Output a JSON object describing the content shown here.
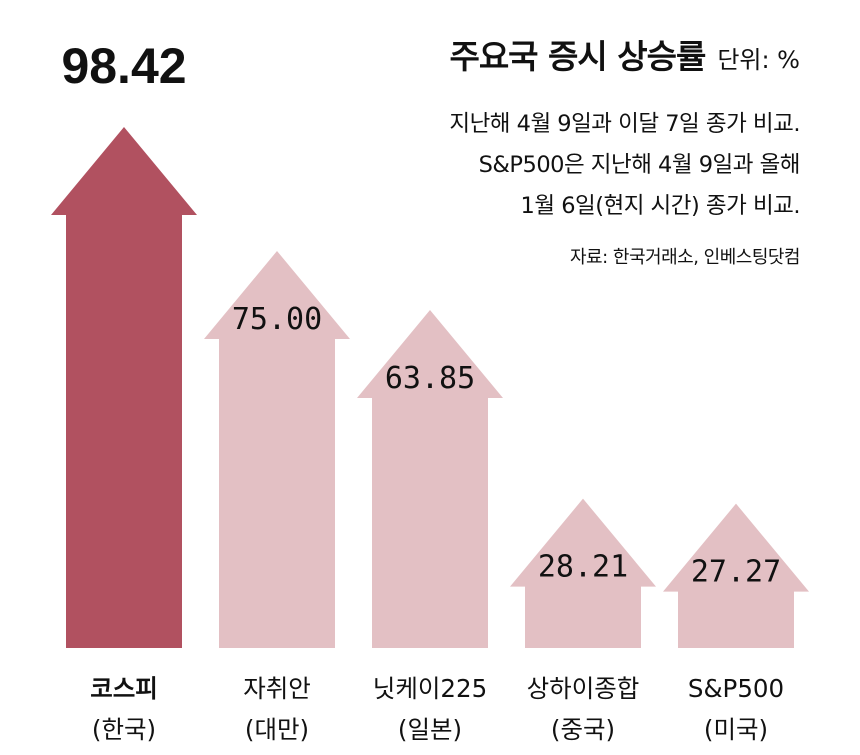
{
  "header": {
    "title": "주요국 증시 상승률",
    "unit": "단위: %",
    "notes": [
      "지난해 4월 9일과 이달 7일 종가 비교.",
      "S&P500은 지난해 4월 9일과 올해",
      "1월 6일(현지 시간) 종가 비교."
    ],
    "source": "자료: 한국거래소, 인베스팅닷컴"
  },
  "colors": {
    "highlight": "#b15160",
    "normal": "#e3c0c4"
  },
  "chart_data": {
    "type": "bar",
    "title": "주요국 증시 상승률",
    "ylabel": "",
    "unit": "%",
    "categories": [
      "코스피",
      "자취안",
      "닛케이225",
      "상하이종합",
      "S&P500"
    ],
    "sublabels": [
      "(한국)",
      "(대만)",
      "(일본)",
      "(중국)",
      "(미국)"
    ],
    "values": [
      98.42,
      75.0,
      63.85,
      28.21,
      27.27
    ],
    "value_labels": [
      "98.42",
      "75.00",
      "63.85",
      "28.21",
      "27.27"
    ],
    "highlight_index": 0,
    "ylim": [
      0,
      100
    ],
    "grid": false
  }
}
